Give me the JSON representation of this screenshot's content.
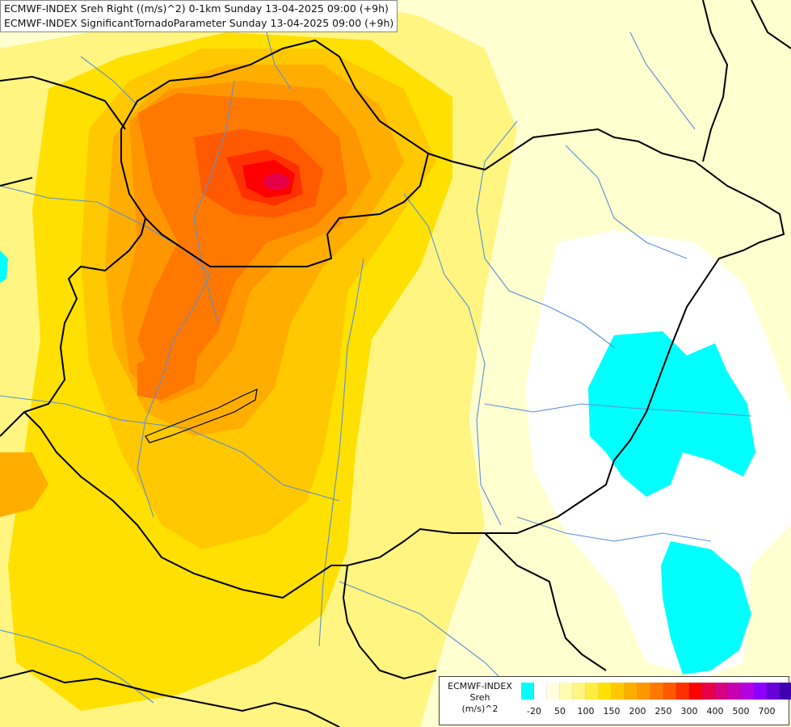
{
  "header": {
    "line1": "ECMWF-INDEX Sreh Right ((m/s)^2) 0-1km Sunday 13-04-2025 09:00 (+9h)",
    "line2": "ECMWF-INDEX SignificantTornadoParameter Sunday 13-04-2025 09:00 (+9h)"
  },
  "legend": {
    "title_line1": "ECMWF-INDEX",
    "title_line2": "Sreh",
    "title_line3": "(m/s)^2",
    "swatch_colors": [
      "#00ffff",
      "#ffffff",
      "#ffffe0",
      "#fffcb0",
      "#fff580",
      "#ffee40",
      "#ffe000",
      "#ffc800",
      "#ffae00",
      "#ff9600",
      "#ff7800",
      "#ff5a00",
      "#ff3000",
      "#ff0000",
      "#e6004a",
      "#d60080",
      "#c800b4",
      "#b400e0",
      "#8c00ff",
      "#6a00d8",
      "#4000b0",
      "#000080"
    ],
    "ticks": [
      "-20",
      "50",
      "100",
      "150",
      "200",
      "250",
      "300",
      "400",
      "500",
      "700"
    ]
  },
  "colors": {
    "background": "#ffffd0",
    "border_line": "#000000",
    "river_line": "#5a8fd8"
  }
}
